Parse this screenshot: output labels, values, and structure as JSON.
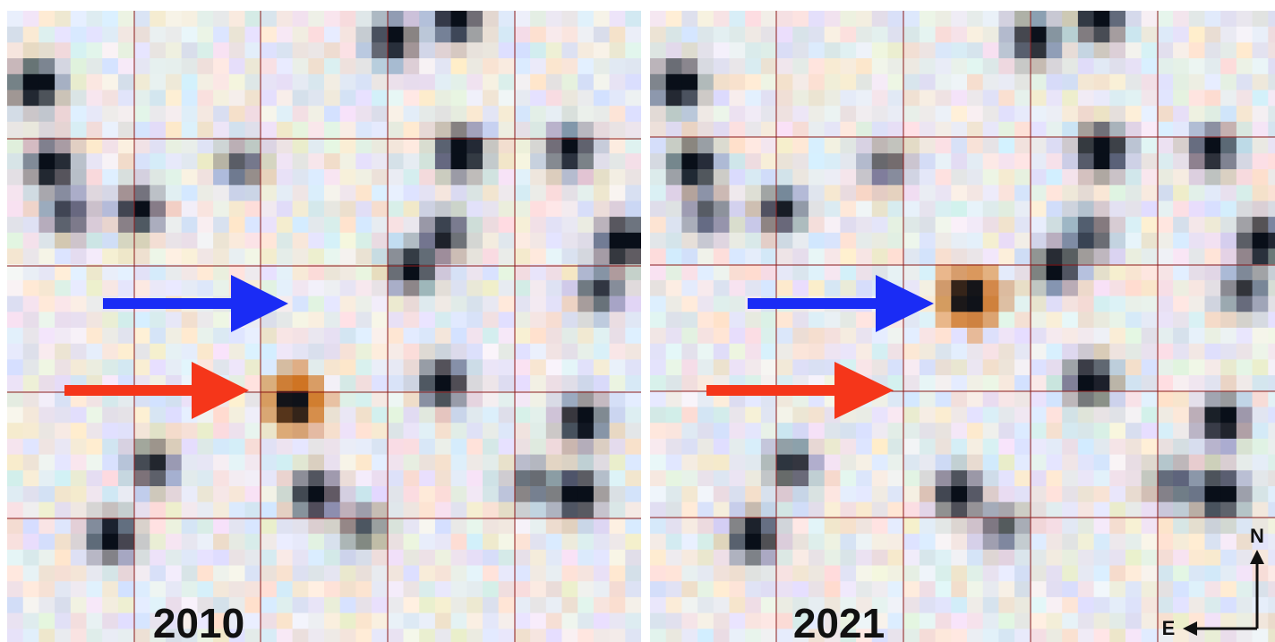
{
  "panels": [
    {
      "label": "2010"
    },
    {
      "label": "2021"
    }
  ],
  "compass": {
    "north": "N",
    "east": "E"
  }
}
